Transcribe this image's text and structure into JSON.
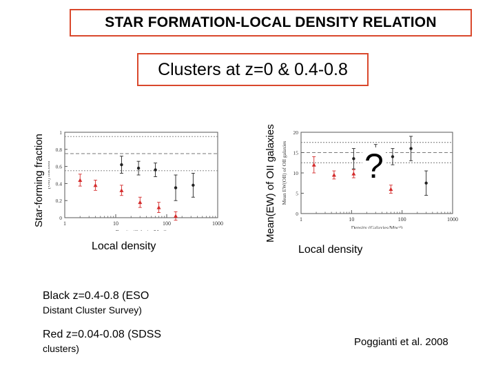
{
  "slide": {
    "title": "STAR FORMATION-LOCAL DENSITY RELATION",
    "subtitle": "Clusters at z=0 & 0.4-0.8",
    "left_ylabel": "Star-forming fraction",
    "left_xlabel": "Local density",
    "right_ylabel": "Mean(EW) of OII galaxies",
    "right_xlabel": "Local density",
    "question_mark": "?",
    "legend_black_line1": "Black z=0.4-0.8 (ESO",
    "legend_black_line2": "Distant Cluster Survey)",
    "legend_red_line1": "Red z=0.04-0.08 (SDSS",
    "legend_red_line2": "clusters)",
    "citation": "Poggianti et al. 2008"
  },
  "colors": {
    "frame": "#d9472b",
    "black_series": "#222222",
    "red_series": "#d42b2b"
  },
  "chart_data": [
    {
      "type": "scatter",
      "xlabel": "Density (Galaxies/Mpc²)",
      "ylabel": "[OII] fraction",
      "x_scale": "log",
      "xlim": [
        1,
        1000
      ],
      "ylim": [
        0,
        1
      ],
      "xticks": [
        "1",
        "10",
        "100",
        "1000"
      ],
      "yticks": [
        "0",
        "0.2",
        "0.4",
        "0.6",
        "0.8",
        "1"
      ],
      "hlines": [
        0.55,
        0.75,
        0.95
      ],
      "series": [
        {
          "color": "black",
          "x": [
            13,
            28,
            60,
            150,
            330
          ],
          "y": [
            0.62,
            0.58,
            0.56,
            0.35,
            0.38
          ],
          "err": [
            0.1,
            0.08,
            0.08,
            0.15,
            0.14
          ]
        },
        {
          "color": "red",
          "x": [
            2,
            4,
            13,
            30,
            70,
            150
          ],
          "y": [
            0.44,
            0.38,
            0.32,
            0.18,
            0.12,
            0.02
          ],
          "err": [
            0.07,
            0.06,
            0.06,
            0.06,
            0.06,
            0.05
          ]
        }
      ]
    },
    {
      "type": "scatter",
      "xlabel": "Density (Galaxies/Mpc²)",
      "ylabel": "Mean EW(OII) of OII galaxies",
      "x_scale": "log",
      "xlim": [
        1,
        1000
      ],
      "ylim": [
        0,
        20
      ],
      "xticks": [
        "1",
        "10",
        "100",
        "1000"
      ],
      "yticks": [
        "0",
        "5",
        "10",
        "15",
        "20"
      ],
      "hlines": [
        12.5,
        15,
        17.5
      ],
      "series": [
        {
          "color": "black",
          "x": [
            11,
            30,
            65,
            150,
            300
          ],
          "y": [
            13.5,
            15,
            14,
            16,
            7.5
          ],
          "err": [
            2.5,
            2,
            2,
            3,
            3
          ]
        },
        {
          "color": "red",
          "x": [
            1.8,
            4.5,
            11,
            25,
            60
          ],
          "y": [
            12,
            9.5,
            9.8,
            8.5,
            6
          ],
          "err": [
            2,
            1,
            1,
            1.2,
            1
          ]
        }
      ]
    }
  ]
}
